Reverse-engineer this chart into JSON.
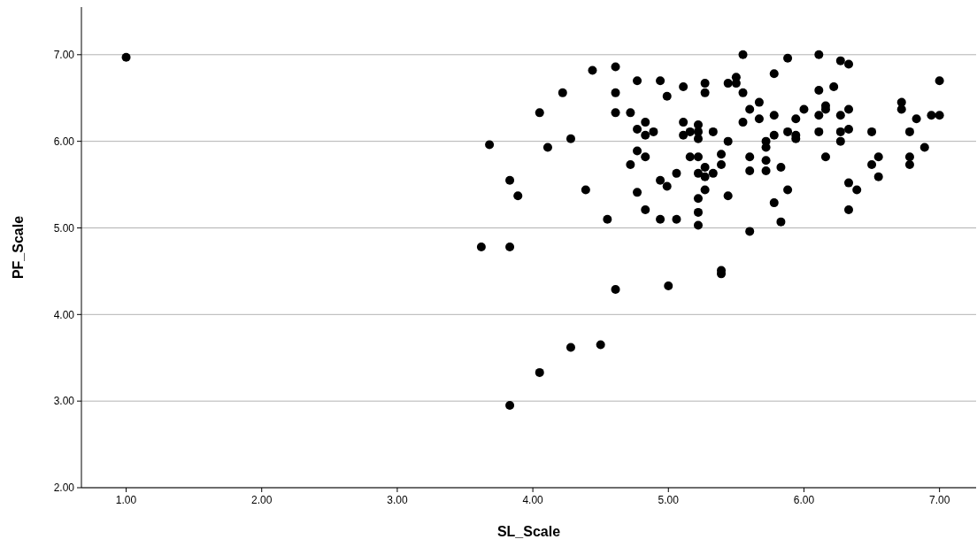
{
  "chart_data": {
    "type": "scatter",
    "xlabel": "SL_Scale",
    "ylabel": "PF_Scale",
    "xlim": [
      0.67,
      7.27
    ],
    "ylim": [
      2,
      7.55
    ],
    "xticks": [
      {
        "value": 1,
        "label": "1.00"
      },
      {
        "value": 2,
        "label": "2.00"
      },
      {
        "value": 3,
        "label": "3.00"
      },
      {
        "value": 4,
        "label": "4.00"
      },
      {
        "value": 5,
        "label": "5.00"
      },
      {
        "value": 6,
        "label": "6.00"
      },
      {
        "value": 7,
        "label": "7.00"
      }
    ],
    "yticks": [
      {
        "value": 2,
        "label": "2.00"
      },
      {
        "value": 3,
        "label": "3.00"
      },
      {
        "value": 4,
        "label": "4.00"
      },
      {
        "value": 5,
        "label": "5.00"
      },
      {
        "value": 6,
        "label": "6.00"
      },
      {
        "value": 7,
        "label": "7.00"
      }
    ],
    "grid": "y",
    "marker": "circle",
    "series": [
      {
        "color": "#000000",
        "x": [
          1.0,
          3.62,
          3.68,
          3.83,
          3.83,
          3.83,
          3.89,
          4.05,
          4.05,
          4.11,
          4.22,
          4.28,
          4.28,
          4.39,
          4.44,
          4.5,
          4.55,
          4.61,
          4.61,
          4.61,
          4.61,
          4.72,
          4.72,
          4.77,
          4.77,
          4.77,
          4.77,
          4.83,
          4.83,
          4.83,
          4.83,
          4.89,
          4.94,
          4.94,
          4.94,
          4.99,
          4.99,
          5.0,
          5.06,
          5.06,
          5.11,
          5.11,
          5.11,
          5.16,
          5.16,
          5.22,
          5.22,
          5.22,
          5.22,
          5.22,
          5.22,
          5.22,
          5.22,
          5.27,
          5.27,
          5.27,
          5.27,
          5.27,
          5.33,
          5.33,
          5.39,
          5.39,
          5.39,
          5.39,
          5.44,
          5.44,
          5.44,
          5.5,
          5.5,
          5.55,
          5.55,
          5.55,
          5.6,
          5.6,
          5.6,
          5.6,
          5.67,
          5.67,
          5.72,
          5.72,
          5.72,
          5.72,
          5.78,
          5.78,
          5.78,
          5.78,
          5.83,
          5.83,
          5.88,
          5.88,
          5.88,
          5.94,
          5.94,
          5.94,
          6.0,
          6.11,
          6.11,
          6.11,
          6.11,
          6.16,
          6.16,
          6.16,
          6.22,
          6.27,
          6.27,
          6.27,
          6.27,
          6.33,
          6.33,
          6.33,
          6.33,
          6.33,
          6.39,
          6.5,
          6.5,
          6.55,
          6.55,
          6.72,
          6.72,
          6.78,
          6.78,
          6.78,
          6.83,
          6.89,
          6.94,
          7.0,
          7.0
        ],
        "values": [
          6.97,
          4.78,
          5.96,
          5.55,
          4.78,
          2.95,
          5.37,
          6.33,
          3.33,
          5.93,
          6.56,
          6.03,
          3.62,
          5.44,
          6.82,
          3.65,
          5.1,
          6.86,
          6.56,
          6.33,
          4.29,
          6.33,
          5.73,
          6.7,
          6.14,
          5.89,
          5.41,
          6.22,
          6.07,
          5.82,
          5.21,
          6.11,
          6.7,
          5.55,
          5.1,
          6.52,
          5.48,
          4.33,
          5.63,
          5.1,
          6.63,
          6.22,
          6.07,
          5.82,
          6.11,
          6.19,
          6.11,
          6.03,
          5.82,
          5.63,
          5.34,
          5.18,
          5.03,
          6.67,
          6.56,
          5.7,
          5.59,
          5.44,
          6.11,
          5.63,
          5.85,
          5.73,
          4.51,
          4.47,
          6.67,
          6.0,
          5.37,
          6.74,
          6.67,
          7.0,
          6.56,
          6.22,
          6.37,
          5.82,
          5.66,
          4.96,
          6.45,
          6.26,
          6.0,
          5.93,
          5.78,
          5.66,
          6.78,
          6.3,
          6.07,
          5.29,
          5.7,
          5.07,
          6.96,
          6.11,
          5.44,
          6.26,
          6.07,
          6.03,
          6.37,
          7.0,
          6.59,
          6.3,
          6.11,
          6.41,
          6.37,
          5.82,
          6.63,
          6.93,
          6.3,
          6.11,
          6.0,
          6.89,
          6.37,
          6.14,
          5.52,
          5.21,
          5.44,
          6.11,
          5.73,
          5.82,
          5.59,
          6.45,
          6.37,
          6.11,
          5.82,
          5.73,
          6.26,
          5.93,
          6.3,
          6.7,
          6.3
        ]
      }
    ]
  }
}
